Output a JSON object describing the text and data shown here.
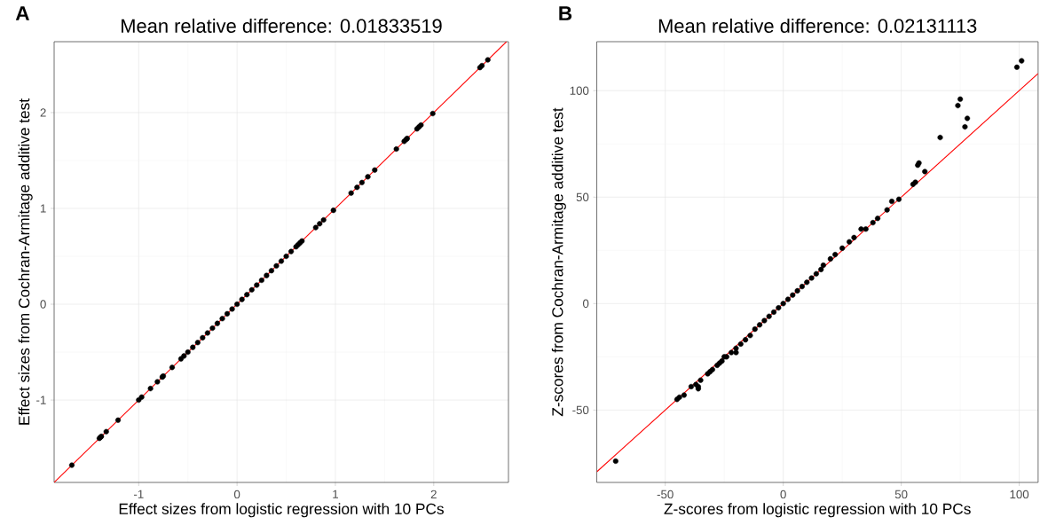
{
  "chart_data": [
    {
      "type": "scatter",
      "title": "Mean relative difference: 0.01833519",
      "xlabel": "Effect sizes from logistic regression with 10 PCs",
      "ylabel": "Effect sizes from Cochran-Armitage additive test",
      "annotations": [
        "A"
      ],
      "xlim": [
        -1.86,
        2.76
      ],
      "ylim": [
        -1.86,
        2.74
      ],
      "xticks": [
        -1,
        0,
        1,
        2
      ],
      "yticks": [
        -1,
        0,
        1,
        2
      ],
      "grid": true,
      "series": [
        {
          "type": "scatter",
          "marker": "circle",
          "color": "#000000",
          "x": [
            -1.68,
            -1.4,
            -1.39,
            -1.38,
            -1.33,
            -1.21,
            -1.0,
            -0.97,
            -0.88,
            -0.81,
            -0.76,
            -0.75,
            -0.66,
            -0.57,
            -0.54,
            -0.5,
            -0.45,
            -0.4,
            -0.35,
            -0.3,
            -0.25,
            -0.2,
            -0.15,
            -0.1,
            -0.05,
            0,
            0.05,
            0.1,
            0.15,
            0.2,
            0.25,
            0.3,
            0.35,
            0.4,
            0.45,
            0.5,
            0.55,
            0.6,
            0.62,
            0.64,
            0.66,
            0.8,
            0.84,
            0.88,
            0.98,
            1.16,
            1.22,
            1.27,
            1.33,
            1.4,
            1.62,
            1.7,
            1.72,
            1.73,
            1.83,
            1.85,
            1.87,
            1.99,
            2.47,
            2.49,
            2.55
          ],
          "values": [
            -1.68,
            -1.4,
            -1.39,
            -1.38,
            -1.33,
            -1.21,
            -1.0,
            -0.97,
            -0.88,
            -0.81,
            -0.76,
            -0.75,
            -0.66,
            -0.57,
            -0.54,
            -0.5,
            -0.45,
            -0.4,
            -0.35,
            -0.3,
            -0.25,
            -0.2,
            -0.15,
            -0.1,
            -0.05,
            0,
            0.05,
            0.1,
            0.15,
            0.2,
            0.25,
            0.3,
            0.35,
            0.4,
            0.45,
            0.5,
            0.55,
            0.6,
            0.62,
            0.64,
            0.66,
            0.8,
            0.84,
            0.88,
            0.98,
            1.16,
            1.22,
            1.27,
            1.33,
            1.4,
            1.62,
            1.7,
            1.72,
            1.73,
            1.83,
            1.85,
            1.87,
            1.99,
            2.47,
            2.49,
            2.55
          ]
        },
        {
          "type": "line",
          "marker": "none",
          "color": "#ff0000",
          "x": [
            -1.86,
            2.74
          ],
          "values": [
            -1.86,
            2.74
          ]
        }
      ]
    },
    {
      "type": "scatter",
      "title": "Mean relative difference: 0.02131113",
      "xlabel": "Z-scores from logistic regression with 10 PCs",
      "ylabel": "Z-scores from Cochran-Armitage additive test",
      "annotations": [
        "B"
      ],
      "xlim": [
        -79,
        108
      ],
      "ylim": [
        -84,
        123
      ],
      "xticks": [
        -50,
        0,
        50,
        100
      ],
      "yticks": [
        -50,
        0,
        50,
        100
      ],
      "grid": true,
      "series": [
        {
          "type": "scatter",
          "marker": "circle",
          "color": "#000000",
          "x": [
            -71,
            -45,
            -44,
            -42,
            -39,
            -37,
            -36,
            -36,
            -35,
            -32,
            -31,
            -27,
            -25,
            -20,
            -20,
            -18,
            -30,
            -28,
            -26,
            -24,
            -22,
            -16,
            -14,
            -12,
            -10,
            -8,
            -6,
            -4,
            -2,
            0,
            2,
            4,
            6,
            8,
            10,
            12,
            14,
            16,
            17,
            20,
            22,
            25,
            28,
            30,
            33,
            35,
            38,
            40,
            44,
            46,
            49,
            55,
            56,
            57,
            57.5,
            60,
            66.5,
            74,
            75,
            77,
            78,
            99,
            101
          ],
          "values": [
            -74,
            -45,
            -44,
            -43,
            -39,
            -38,
            -39,
            -40,
            -36,
            -33,
            -32,
            -28,
            -25,
            -21,
            -23,
            -19,
            -31,
            -29,
            -27,
            -25,
            -23,
            -17,
            -15,
            -12,
            -10,
            -8,
            -6,
            -4,
            -2,
            0,
            2,
            4,
            6,
            8,
            10,
            12,
            14,
            16,
            18,
            21,
            23,
            26,
            29,
            31,
            35,
            35,
            38,
            40,
            44,
            48,
            49,
            56,
            57,
            65,
            66,
            62,
            78,
            93,
            96,
            83,
            87,
            111,
            114
          ]
        },
        {
          "type": "line",
          "marker": "none",
          "color": "#ff0000",
          "x": [
            -79,
            108
          ],
          "values": [
            -79,
            108
          ]
        }
      ]
    }
  ]
}
